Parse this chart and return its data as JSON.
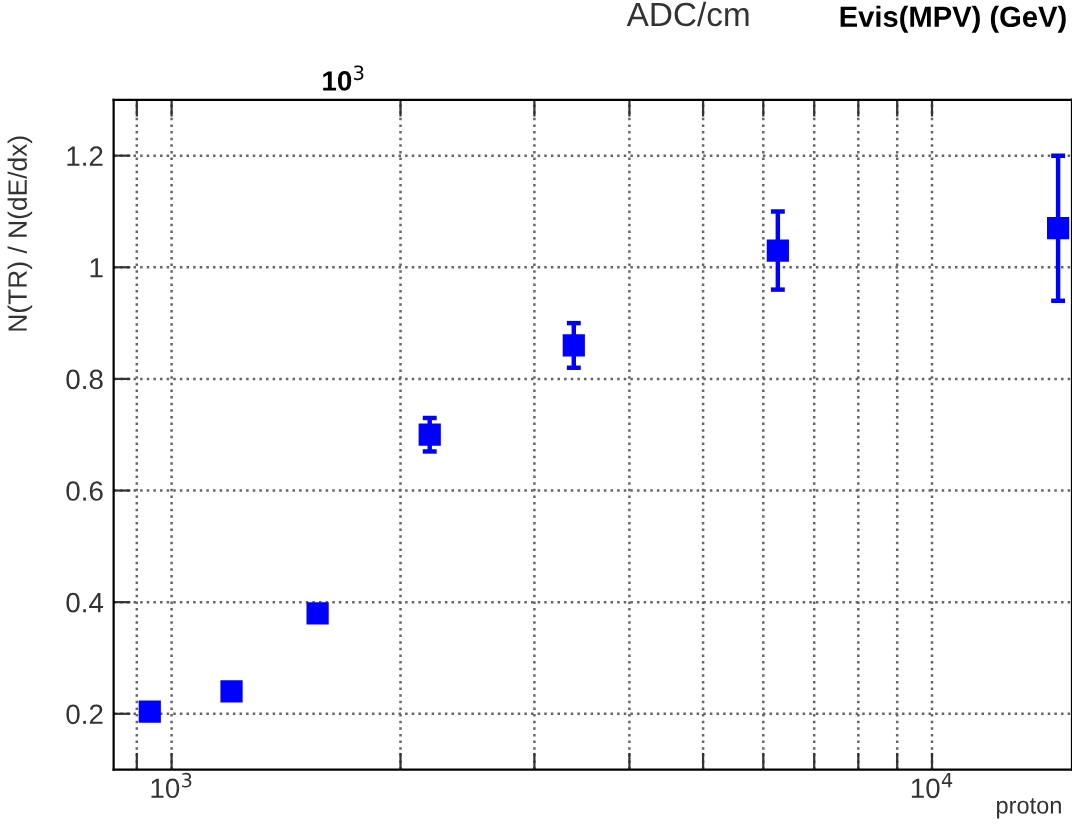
{
  "chart_data": {
    "type": "scatter",
    "title": "ADC/cm",
    "x2label": "Evis(MPV) (GeV)",
    "xlabel": "proton",
    "ylabel": "N(TR) / N(dE/dx)",
    "log": "x",
    "xlim": [
      839,
      15280
    ],
    "xticks": [
      {
        "value": 900,
        "label": null
      },
      {
        "value": 1000,
        "label": "10$^{3}$"
      },
      {
        "value": 2000,
        "label": null
      },
      {
        "value": 3000,
        "label": null
      },
      {
        "value": 4000,
        "label": null
      },
      {
        "value": 5000,
        "label": null
      },
      {
        "value": 6000,
        "label": null
      },
      {
        "value": 7000,
        "label": null
      },
      {
        "value": 8000,
        "label": null
      },
      {
        "value": 9000,
        "label": null
      },
      {
        "value": 10000,
        "label": "10$^{4}$"
      }
    ],
    "annotations": [
      "10$^{3}$"
    ],
    "ylim": [
      0.1,
      1.3
    ],
    "yticks": [
      0.2,
      0.4,
      0.6,
      0.8,
      1,
      1.2
    ],
    "grid": true,
    "marker": "square",
    "series": [
      {
        "color": "#0000ff",
        "x": [
          936,
          1199,
          1556,
          2185,
          3380,
          6270,
          14650
        ],
        "values": [
          0.204,
          0.24,
          0.38,
          0.7,
          0.86,
          1.03,
          1.07
        ],
        "errors": [
          null,
          null,
          null,
          0.03,
          0.04,
          0.07,
          0.13
        ]
      }
    ]
  }
}
